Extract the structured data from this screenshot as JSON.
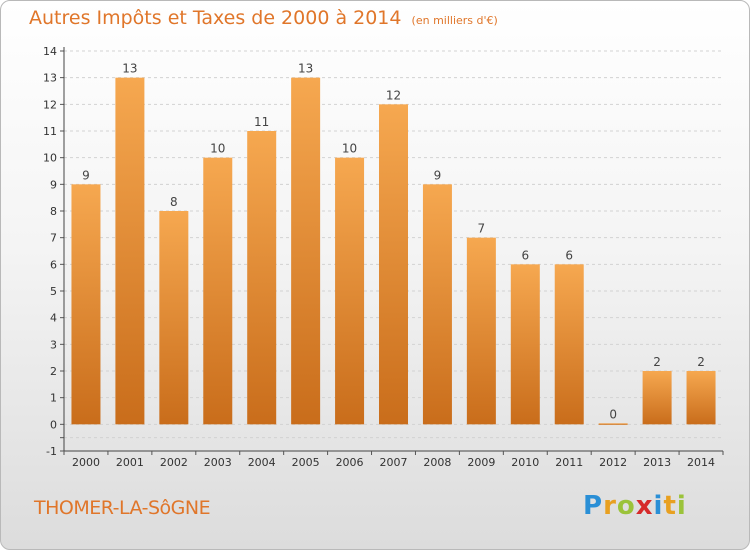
{
  "header": {
    "title": "Autres Impôts et Taxes de 2000 à 2014",
    "subtitle": "(en milliers d'€)"
  },
  "footer": {
    "commune": "THOMER-LA-SôGNE",
    "logo_letters": [
      "P",
      "r",
      "o",
      "x",
      "i",
      "t",
      "i"
    ],
    "logo_colors": [
      "#2a8fd6",
      "#e8a020",
      "#9bc33a",
      "#d62a2a",
      "#2a8fd6",
      "#e8a020",
      "#9bc33a"
    ]
  },
  "colors": {
    "bar_light": "#f6a850",
    "bar_dark": "#c96d1b",
    "accent": "#e0762a"
  },
  "chart_data": {
    "type": "bar",
    "title": "Autres Impôts et Taxes de 2000 à 2014",
    "subtitle": "(en milliers d'€)",
    "categories": [
      "2000",
      "2001",
      "2002",
      "2003",
      "2004",
      "2005",
      "2006",
      "2007",
      "2008",
      "2009",
      "2010",
      "2011",
      "2012",
      "2013",
      "2014"
    ],
    "values": [
      9,
      13,
      8,
      10,
      11,
      13,
      10,
      12,
      9,
      7,
      6,
      6,
      0,
      2,
      2
    ],
    "ylim": [
      -1,
      14
    ],
    "yticks": [
      "-1",
      "",
      "0",
      "1",
      "2",
      "3",
      "4",
      "5",
      "6",
      "7",
      "8",
      "9",
      "10",
      "11",
      "12",
      "13",
      "14"
    ],
    "ytick_values": [
      -1,
      -0.5,
      0,
      1,
      2,
      3,
      4,
      5,
      6,
      7,
      8,
      9,
      10,
      11,
      12,
      13,
      14
    ],
    "grid": true,
    "xlabel": "",
    "ylabel": ""
  }
}
